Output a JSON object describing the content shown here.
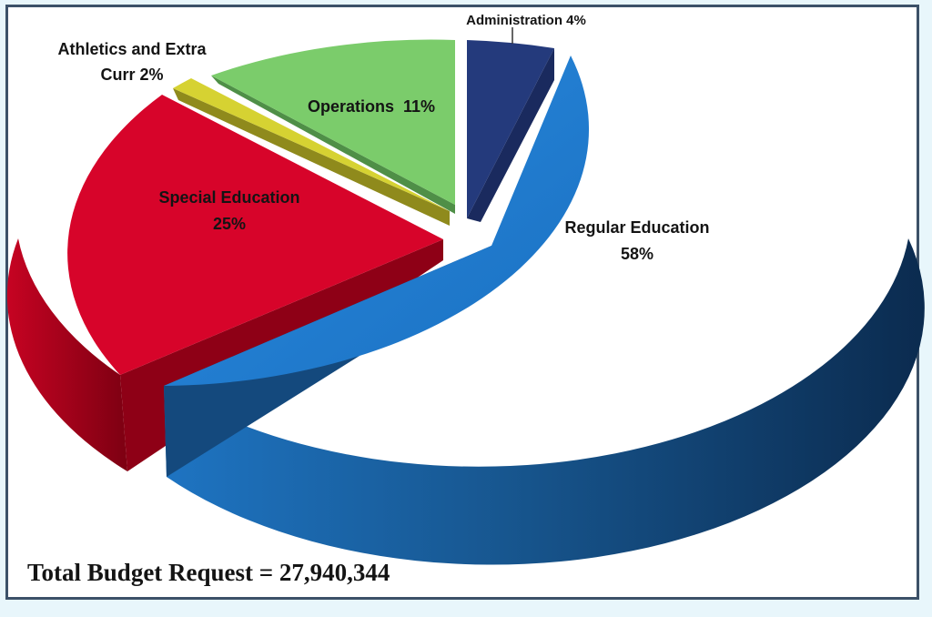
{
  "chart_data": {
    "type": "pie",
    "title": "",
    "slices": [
      {
        "label": "Administration",
        "label_text": "Administration 4%",
        "value": 4,
        "color": "#243a7c"
      },
      {
        "label": "Regular Education",
        "label_lines": [
          "Regular Education",
          "58%"
        ],
        "value": 58,
        "color": "#1b7bd0"
      },
      {
        "label": "Special Education",
        "label_lines": [
          "Special Education",
          "25%"
        ],
        "value": 25,
        "color": "#d7042a"
      },
      {
        "label": "Athletics and Extra Curr",
        "label_lines": [
          "Athletics and Extra",
          "Curr 2%"
        ],
        "value": 2,
        "color": "#d6d232"
      },
      {
        "label": "Operations",
        "label_text": "Operations  11%",
        "value": 11,
        "color": "#7bcc6b"
      }
    ],
    "style": "3d exploded"
  },
  "footer": {
    "total_text": "Total Budget Request = 27,940,344"
  }
}
